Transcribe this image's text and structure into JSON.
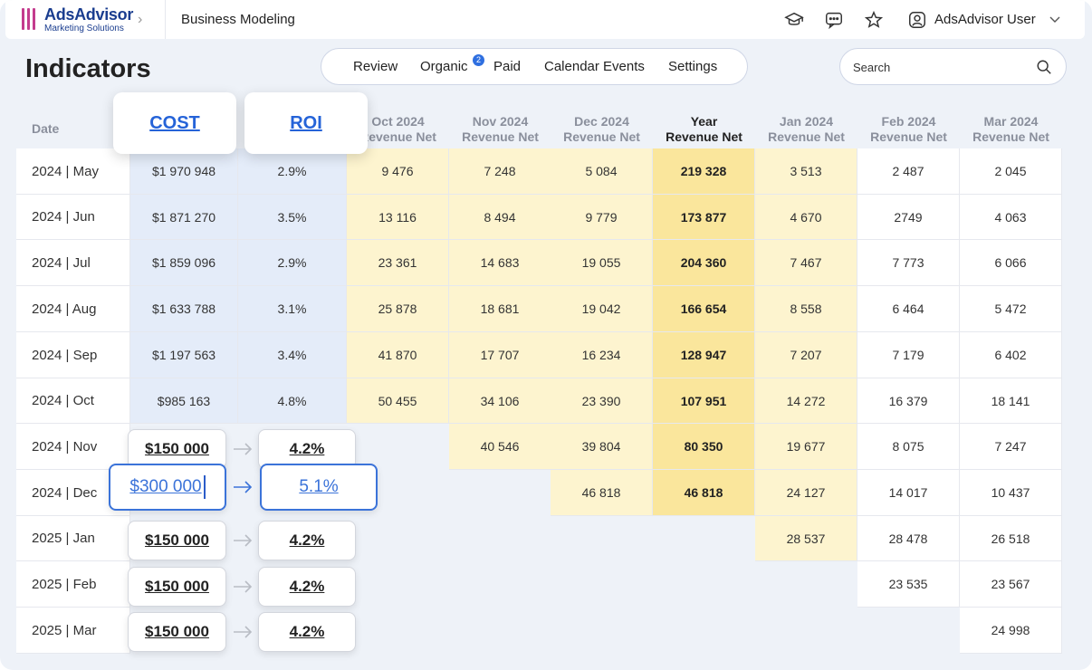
{
  "app": {
    "name": "AdsAdvisor",
    "subtitle": "Marketing Solutions"
  },
  "breadcrumb": {
    "page": "Business Modeling"
  },
  "user": {
    "name": "AdsAdvisor User"
  },
  "page_title": "Indicators",
  "tabs": [
    {
      "label": "Review"
    },
    {
      "label": "Organic",
      "badge": "2"
    },
    {
      "label": "Paid"
    },
    {
      "label": "Calendar Events"
    },
    {
      "label": "Settings"
    }
  ],
  "search": {
    "placeholder": "Search"
  },
  "table": {
    "date_header": "Date",
    "cost_header": "COST",
    "roi_header": "ROI",
    "columns": [
      {
        "line1": "Oct 2024",
        "line2": "Revenue Net"
      },
      {
        "line1": "Nov 2024",
        "line2": "Revenue Net"
      },
      {
        "line1": "Dec 2024",
        "line2": "Revenue Net"
      },
      {
        "line1": "Year",
        "line2": "Revenue Net"
      },
      {
        "line1": "Jan 2024",
        "line2": "Revenue Net"
      },
      {
        "line1": "Feb 2024",
        "line2": "Revenue Net"
      },
      {
        "line1": "Mar 2024",
        "line2": "Revenue Net"
      }
    ],
    "rows": [
      {
        "date": "2024 | May",
        "cost": "$1 970 948",
        "roi": "2.9%",
        "vals": [
          "9 476",
          "7 248",
          "5 084",
          "219 328",
          "3 513",
          "2 487",
          "2 045"
        ]
      },
      {
        "date": "2024 | Jun",
        "cost": "$1 871 270",
        "roi": "3.5%",
        "vals": [
          "13 116",
          "8 494",
          "9 779",
          "173 877",
          "4 670",
          "2749",
          "4 063"
        ]
      },
      {
        "date": "2024 | Jul",
        "cost": "$1 859 096",
        "roi": "2.9%",
        "vals": [
          "23 361",
          "14 683",
          "19 055",
          "204 360",
          "7 467",
          "7 773",
          "6 066"
        ]
      },
      {
        "date": "2024 | Aug",
        "cost": "$1 633 788",
        "roi": "3.1%",
        "vals": [
          "25 878",
          "18 681",
          "19 042",
          "166 654",
          "8 558",
          "6 464",
          "5 472"
        ]
      },
      {
        "date": "2024 | Sep",
        "cost": "$1 197 563",
        "roi": "3.4%",
        "vals": [
          "41 870",
          "17 707",
          "16 234",
          "128 947",
          "7 207",
          "7 179",
          "6 402"
        ]
      },
      {
        "date": "2024 | Oct",
        "cost": "$985 163",
        "roi": "4.8%",
        "vals": [
          "50 455",
          "34 106",
          "23 390",
          "107 951",
          "14 272",
          "16 379",
          "18 141"
        ]
      },
      {
        "date": "2024 | Nov",
        "cost": "$150 000",
        "roi": "4.2%",
        "vals": [
          "",
          "40 546",
          "39 804",
          "80 350",
          "19 677",
          "8 075",
          "7 247"
        ]
      },
      {
        "date": "2024 | Dec",
        "cost": "$300 000",
        "roi": "5.1%",
        "vals": [
          "",
          "",
          "46 818",
          "46 818",
          "24 127",
          "14 017",
          "10 437"
        ]
      },
      {
        "date": "2025 | Jan",
        "cost": "$150 000",
        "roi": "4.2%",
        "vals": [
          "",
          "",
          "",
          "",
          "28 537",
          "28 478",
          "26 518"
        ]
      },
      {
        "date": "2025 | Feb",
        "cost": "$150 000",
        "roi": "4.2%",
        "vals": [
          "",
          "",
          "",
          "",
          "",
          "23 535",
          "23 567"
        ]
      },
      {
        "date": "2025 | Mar",
        "cost": "$150 000",
        "roi": "4.2%",
        "vals": [
          "",
          "",
          "",
          "",
          "",
          "",
          "24 998"
        ]
      }
    ]
  },
  "colors": {
    "brand": "#1a3d8f",
    "accent": "#2563d8",
    "cost_roi_bg": "#e4ecf9",
    "forecast_bg": "#fdf4cf",
    "year_bg": "#fae69c"
  }
}
